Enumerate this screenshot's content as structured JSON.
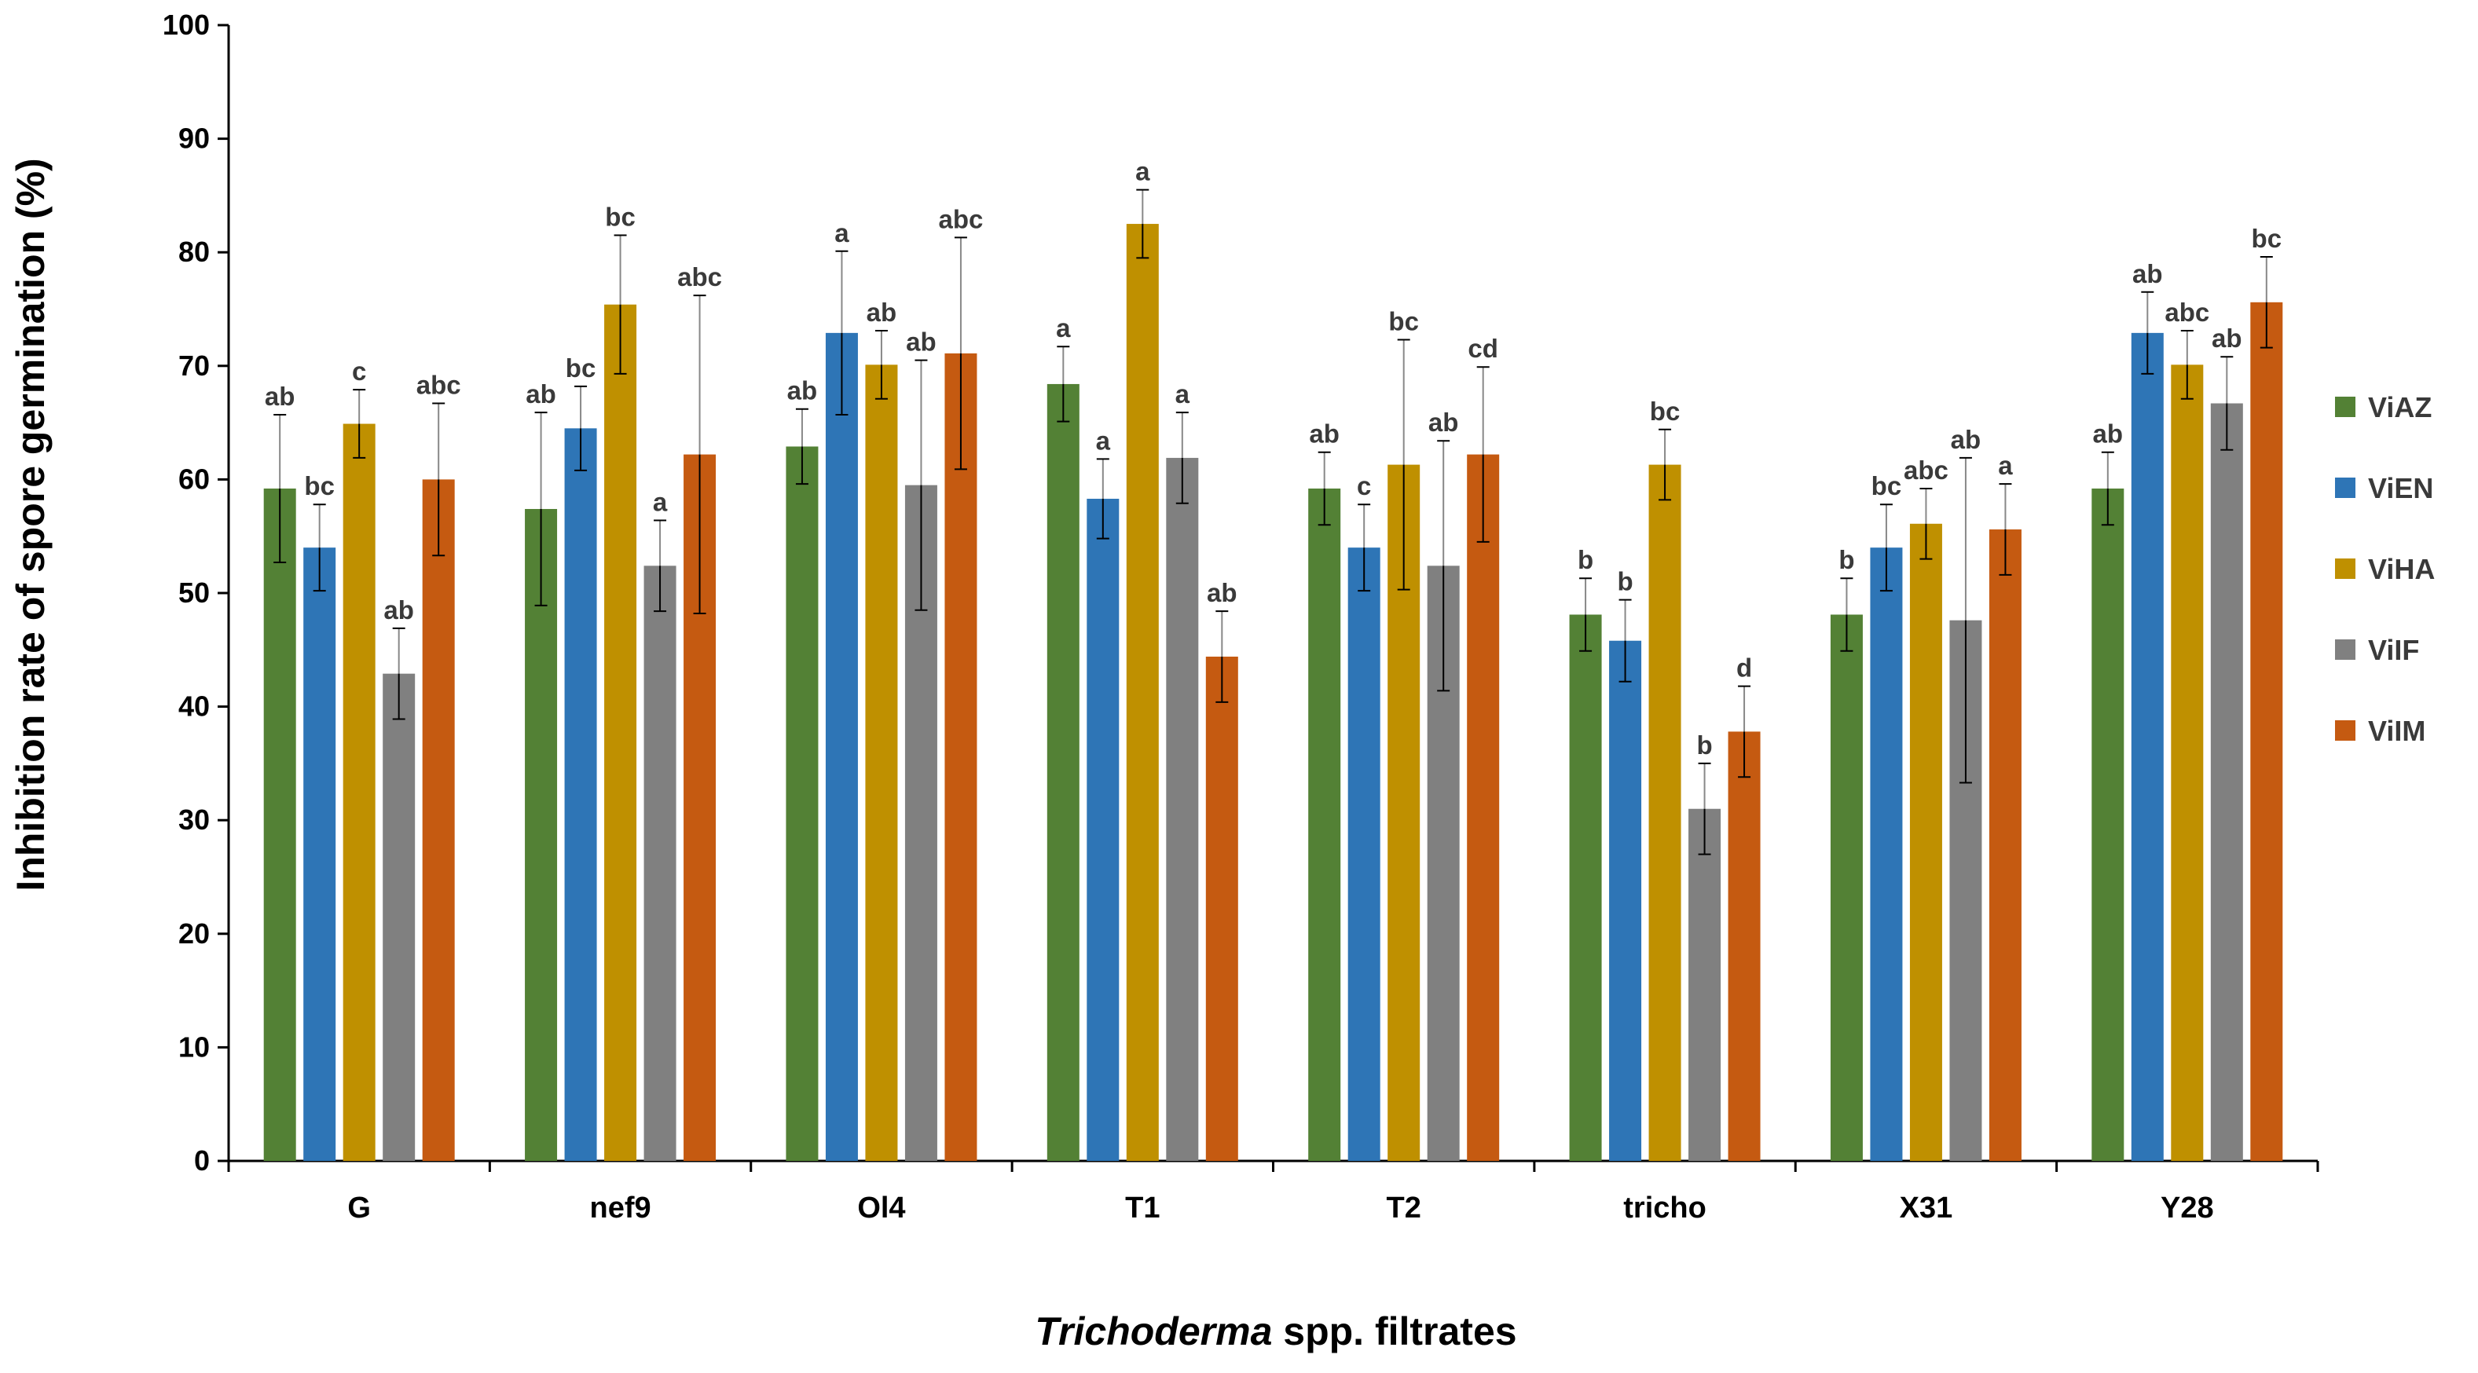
{
  "chart_data": {
    "type": "bar",
    "title": "",
    "ylabel": "Inhibition rate of spore germination (%)",
    "xlabel_italic": "Trichoderma",
    "xlabel_rest": " spp. filtrates",
    "ylim": [
      0,
      100
    ],
    "yticks": [
      0,
      10,
      20,
      30,
      40,
      50,
      60,
      70,
      80,
      90,
      100
    ],
    "categories": [
      "G",
      "nef9",
      "Ol4",
      "T1",
      "T2",
      "tricho",
      "X31",
      "Y28"
    ],
    "legend_position": "right",
    "series": [
      {
        "name": "ViAZ",
        "color": "#538135",
        "values": [
          59.2,
          57.4,
          62.9,
          68.4,
          59.2,
          48.1,
          48.1,
          59.2
        ],
        "errors": [
          6.5,
          8.5,
          3.3,
          3.3,
          3.2,
          3.2,
          3.2,
          3.2
        ],
        "letters": [
          "ab",
          "ab",
          "ab",
          "a",
          "ab",
          "b",
          "b",
          "ab"
        ],
        "letters_dark": true
      },
      {
        "name": "ViEN",
        "color": "#2E75B6",
        "values": [
          54.0,
          64.5,
          72.9,
          58.3,
          54.0,
          45.8,
          54.0,
          72.9
        ],
        "errors": [
          3.8,
          3.7,
          7.2,
          3.5,
          3.8,
          3.6,
          3.8,
          3.6
        ],
        "letters": [
          "bc",
          "bc",
          "a",
          "a",
          "c",
          "b",
          "bc",
          "ab"
        ],
        "letters_dark": false
      },
      {
        "name": "ViHA",
        "color": "#BF9000",
        "values": [
          64.9,
          75.4,
          70.1,
          82.5,
          61.3,
          61.3,
          56.1,
          70.1
        ],
        "errors": [
          3.0,
          6.1,
          3.0,
          3.0,
          11.0,
          3.1,
          3.1,
          3.0
        ],
        "letters": [
          "c",
          "bc",
          "ab",
          "a",
          "bc",
          "bc",
          "abc",
          "abc"
        ],
        "letters_dark": false
      },
      {
        "name": "ViIF",
        "color": "#808080",
        "values": [
          42.9,
          52.4,
          59.5,
          61.9,
          52.4,
          31.0,
          47.6,
          66.7
        ],
        "errors": [
          4.0,
          4.0,
          11.0,
          4.0,
          11.0,
          4.0,
          14.3,
          4.1
        ],
        "letters": [
          "ab",
          "a",
          "ab",
          "a",
          "ab",
          "b",
          "ab",
          "ab"
        ],
        "letters_dark": false
      },
      {
        "name": "ViIM",
        "color": "#C55A11",
        "values": [
          60.0,
          62.2,
          71.1,
          44.4,
          62.2,
          37.8,
          55.6,
          75.6
        ],
        "errors": [
          6.7,
          14.0,
          10.2,
          4.0,
          7.7,
          4.0,
          4.0,
          4.0
        ],
        "letters": [
          "abc",
          "abc",
          "abc",
          "ab",
          "cd",
          "d",
          "a",
          "bc"
        ],
        "letters_dark": false
      }
    ]
  }
}
